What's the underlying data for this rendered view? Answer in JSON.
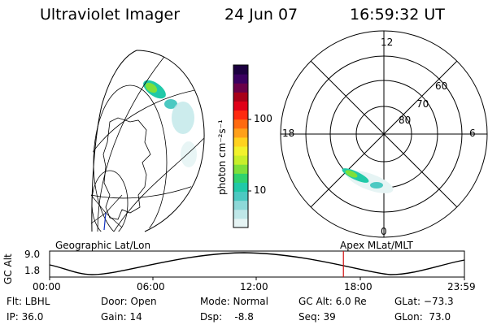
{
  "header": {
    "instrument": "Ultraviolet Imager",
    "date": "24 Jun 07",
    "time": "16:59:32 UT"
  },
  "colorbar": {
    "unit_label": "photon cm⁻²s⁻¹",
    "ticks": [
      "100",
      "10"
    ],
    "colors": [
      "#e6f4f4",
      "#bfe7e8",
      "#8ed8d8",
      "#4cc9c2",
      "#20c9a8",
      "#2fd26e",
      "#7ee03a",
      "#c8ef2a",
      "#f2f22c",
      "#ffd21f",
      "#ffa01a",
      "#ff6a10",
      "#ff2a10",
      "#e00018",
      "#a80018",
      "#6a0048",
      "#3a0060",
      "#1c0040"
    ]
  },
  "polar_plot": {
    "hour_labels": [
      "12",
      "18",
      "6",
      "0"
    ],
    "lat_labels": [
      "60",
      "70",
      "80"
    ]
  },
  "timeline": {
    "y_axis_label": "GC Alt",
    "y_ticks": [
      "9.0",
      "1.8"
    ],
    "left_title": "Geographic Lat/Lon",
    "right_title": "Apex MLat/MLT",
    "x_ticks": [
      "00:00",
      "06:00",
      "12:00",
      "18:00",
      "23:59"
    ],
    "current_time_fraction": 0.7083
  },
  "status": {
    "flt": "Flt: LBHL",
    "ip": "IP: 36.0",
    "door": "Door: Open",
    "gain": "Gain: 14",
    "mode": "Mode: Normal",
    "dsp": "Dsp:    -8.8",
    "gcalt": "GC Alt: 6.0 Re",
    "seq": "Seq: 39",
    "glat": "GLat: −73.3",
    "glon": "GLon:  73.0"
  }
}
